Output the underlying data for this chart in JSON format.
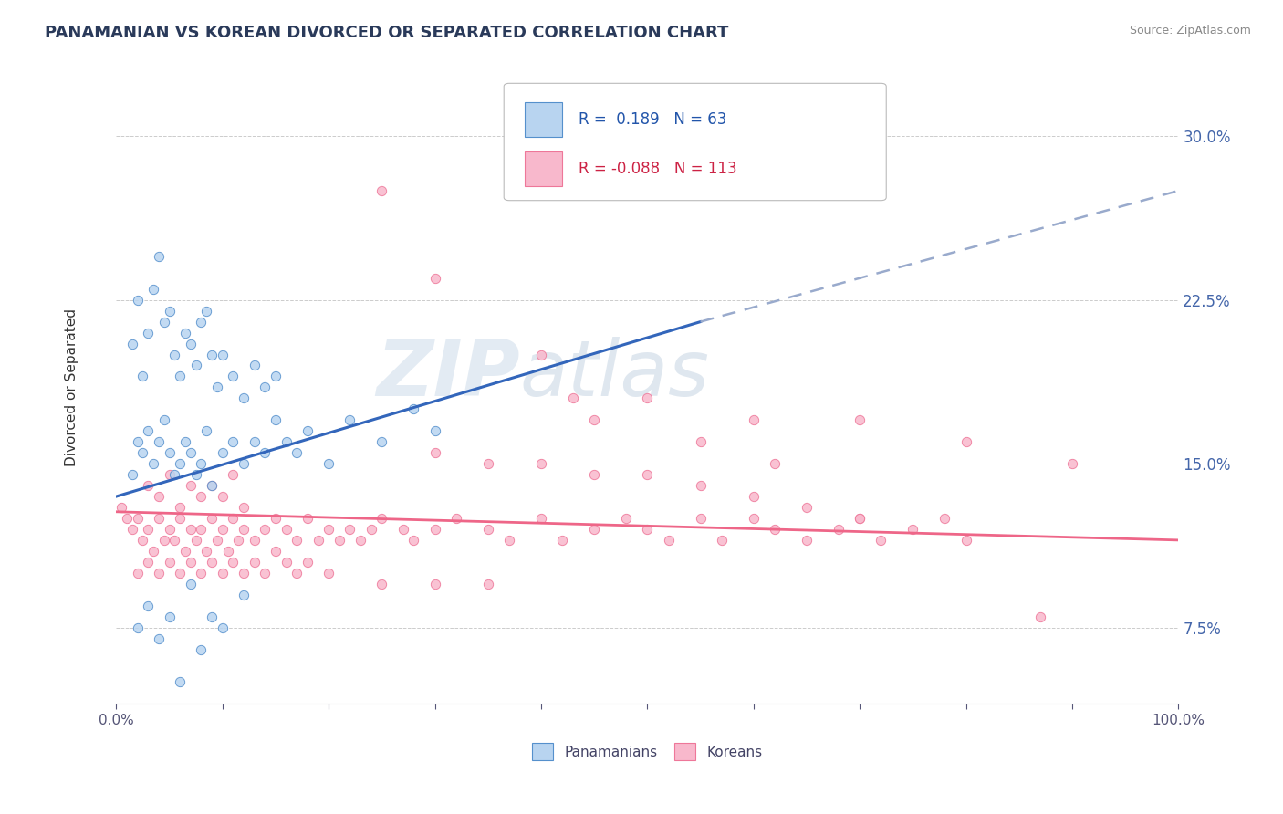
{
  "title": "PANAMANIAN VS KOREAN DIVORCED OR SEPARATED CORRELATION CHART",
  "source": "Source: ZipAtlas.com",
  "ylabel": "Divorced or Separated",
  "xlim": [
    0.0,
    100.0
  ],
  "ylim": [
    4.0,
    33.0
  ],
  "xtick_positions": [
    0,
    10,
    20,
    30,
    40,
    50,
    60,
    70,
    80,
    90,
    100
  ],
  "xtick_labels": [
    "0.0%",
    "",
    "",
    "",
    "",
    "",
    "",
    "",
    "",
    "",
    "100.0%"
  ],
  "ytick_positions": [
    7.5,
    15.0,
    22.5,
    30.0
  ],
  "ytick_labels": [
    "7.5%",
    "15.0%",
    "22.5%",
    "30.0%"
  ],
  "blue_r": "0.189",
  "blue_n": "63",
  "pink_r": "-0.088",
  "pink_n": "113",
  "blue_fill": "#b8d4f0",
  "blue_edge": "#5590cc",
  "pink_fill": "#f8b8cc",
  "pink_edge": "#ee7799",
  "blue_line": "#3366bb",
  "pink_line": "#ee6688",
  "dash_line": "#99aacc",
  "grid_color": "#cccccc",
  "blue_x": [
    1.5,
    2.0,
    2.5,
    3.0,
    3.5,
    4.0,
    4.5,
    5.0,
    5.5,
    6.0,
    6.5,
    7.0,
    7.5,
    8.0,
    8.5,
    9.0,
    9.5,
    10.0,
    11.0,
    12.0,
    13.0,
    14.0,
    15.0,
    1.5,
    2.0,
    2.5,
    3.0,
    3.5,
    4.0,
    4.5,
    5.0,
    5.5,
    6.0,
    6.5,
    7.0,
    7.5,
    8.0,
    8.5,
    9.0,
    10.0,
    11.0,
    12.0,
    13.0,
    14.0,
    15.0,
    16.0,
    17.0,
    18.0,
    20.0,
    22.0,
    25.0,
    28.0,
    30.0,
    2.0,
    3.0,
    4.0,
    5.0,
    6.0,
    7.0,
    8.0,
    9.0,
    10.0,
    12.0
  ],
  "blue_y": [
    20.5,
    22.5,
    19.0,
    21.0,
    23.0,
    24.5,
    21.5,
    22.0,
    20.0,
    19.0,
    21.0,
    20.5,
    19.5,
    21.5,
    22.0,
    20.0,
    18.5,
    20.0,
    19.0,
    18.0,
    19.5,
    18.5,
    19.0,
    14.5,
    16.0,
    15.5,
    16.5,
    15.0,
    16.0,
    17.0,
    15.5,
    14.5,
    15.0,
    16.0,
    15.5,
    14.5,
    15.0,
    16.5,
    14.0,
    15.5,
    16.0,
    15.0,
    16.0,
    15.5,
    17.0,
    16.0,
    15.5,
    16.5,
    15.0,
    17.0,
    16.0,
    17.5,
    16.5,
    7.5,
    8.5,
    7.0,
    8.0,
    5.0,
    9.5,
    6.5,
    8.0,
    7.5,
    9.0
  ],
  "pink_x": [
    0.5,
    1.0,
    1.5,
    2.0,
    2.5,
    3.0,
    3.5,
    4.0,
    4.5,
    5.0,
    5.5,
    6.0,
    6.5,
    7.0,
    7.5,
    8.0,
    8.5,
    9.0,
    9.5,
    10.0,
    10.5,
    11.0,
    11.5,
    12.0,
    13.0,
    14.0,
    15.0,
    16.0,
    17.0,
    18.0,
    19.0,
    20.0,
    21.0,
    22.0,
    23.0,
    24.0,
    25.0,
    27.0,
    28.0,
    30.0,
    32.0,
    35.0,
    37.0,
    40.0,
    42.0,
    45.0,
    48.0,
    50.0,
    52.0,
    55.0,
    57.0,
    60.0,
    62.0,
    65.0,
    68.0,
    70.0,
    72.0,
    75.0,
    78.0,
    80.0,
    3.0,
    4.0,
    5.0,
    6.0,
    7.0,
    8.0,
    9.0,
    10.0,
    11.0,
    12.0,
    2.0,
    3.0,
    4.0,
    5.0,
    6.0,
    7.0,
    8.0,
    9.0,
    10.0,
    11.0,
    12.0,
    13.0,
    14.0,
    15.0,
    16.0,
    17.0,
    18.0,
    20.0,
    25.0,
    30.0,
    35.0,
    87.0,
    30.0,
    35.0,
    40.0,
    45.0,
    50.0,
    55.0,
    60.0,
    65.0,
    70.0,
    43.0,
    45.0,
    55.0,
    62.0,
    25.0,
    30.0,
    40.0,
    50.0,
    60.0,
    70.0,
    80.0,
    90.0
  ],
  "pink_y": [
    13.0,
    12.5,
    12.0,
    12.5,
    11.5,
    12.0,
    11.0,
    12.5,
    11.5,
    12.0,
    11.5,
    12.5,
    11.0,
    12.0,
    11.5,
    12.0,
    11.0,
    12.5,
    11.5,
    12.0,
    11.0,
    12.5,
    11.5,
    12.0,
    11.5,
    12.0,
    12.5,
    12.0,
    11.5,
    12.5,
    11.5,
    12.0,
    11.5,
    12.0,
    11.5,
    12.0,
    12.5,
    12.0,
    11.5,
    12.0,
    12.5,
    12.0,
    11.5,
    12.5,
    11.5,
    12.0,
    12.5,
    12.0,
    11.5,
    12.5,
    11.5,
    12.5,
    12.0,
    11.5,
    12.0,
    12.5,
    11.5,
    12.0,
    12.5,
    11.5,
    14.0,
    13.5,
    14.5,
    13.0,
    14.0,
    13.5,
    14.0,
    13.5,
    14.5,
    13.0,
    10.0,
    10.5,
    10.0,
    10.5,
    10.0,
    10.5,
    10.0,
    10.5,
    10.0,
    10.5,
    10.0,
    10.5,
    10.0,
    11.0,
    10.5,
    10.0,
    10.5,
    10.0,
    9.5,
    9.5,
    9.5,
    8.0,
    15.5,
    15.0,
    15.0,
    14.5,
    14.5,
    14.0,
    13.5,
    13.0,
    12.5,
    18.0,
    17.0,
    16.0,
    15.0,
    27.5,
    23.5,
    20.0,
    18.0,
    17.0,
    17.0,
    16.0,
    15.0
  ],
  "blue_trend_x0": 0.0,
  "blue_trend_x_solid_end": 55.0,
  "blue_trend_x_dash_end": 100.0,
  "blue_trend_y0": 13.5,
  "blue_trend_y_solid_end": 21.5,
  "blue_trend_y_dash_end": 27.5,
  "pink_trend_x0": 0.0,
  "pink_trend_x_end": 100.0,
  "pink_trend_y0": 12.8,
  "pink_trend_y_end": 11.5
}
